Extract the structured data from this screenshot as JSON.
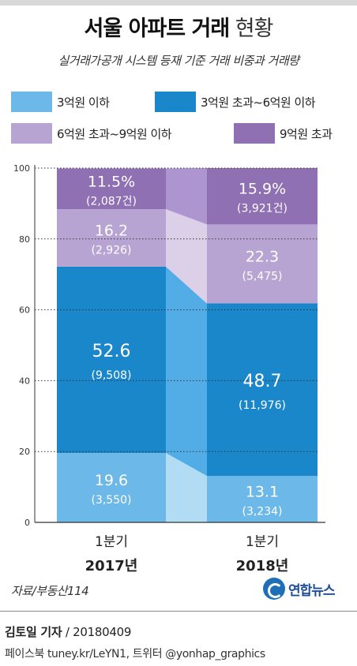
{
  "header": {
    "title_bold": "서울 아파트 거래",
    "title_light": "현황",
    "subtitle": "실거래가공개 시스템 등재 기준 거래 비중과 거래량"
  },
  "legend": [
    {
      "label": "3억원 이하",
      "color": "#6cb8e8"
    },
    {
      "label": "3억원 초과~6억원 이하",
      "color": "#1b87cb"
    },
    {
      "label": "6억원 초과~9억원 이하",
      "color": "#b8a4d2"
    },
    {
      "label": "9억원 초과",
      "color": "#8f70b2"
    }
  ],
  "chart_data": {
    "type": "bar",
    "stacked": true,
    "categories": [
      {
        "quarter": "1분기",
        "year": "2017년"
      },
      {
        "quarter": "1분기",
        "year": "2018년"
      }
    ],
    "series": [
      {
        "name": "3억원 이하",
        "color": "#6cb8e8",
        "values": [
          19.6,
          13.1
        ],
        "labels": [
          "19.6",
          "13.1"
        ],
        "counts": [
          "(3,550)",
          "(3,234)"
        ]
      },
      {
        "name": "3억원 초과~6억원 이하",
        "color": "#1b87cb",
        "values": [
          52.6,
          48.7
        ],
        "labels": [
          "52.6",
          "48.7"
        ],
        "counts": [
          "(9,508)",
          "(11,976)"
        ]
      },
      {
        "name": "6억원 초과~9억원 이하",
        "color": "#b8a4d2",
        "values": [
          16.2,
          22.3
        ],
        "labels": [
          "16.2",
          "22.3"
        ],
        "counts": [
          "(2,926)",
          "(5,475)"
        ]
      },
      {
        "name": "9억원 초과",
        "color": "#8f70b2",
        "values": [
          11.5,
          15.9
        ],
        "labels": [
          "11.5%",
          "15.9%"
        ],
        "counts": [
          "(2,087건)",
          "(3,921건)"
        ]
      }
    ],
    "connector_colors": [
      "#b2dcf4",
      "#52ade6",
      "#dccfe8",
      "#ad95cf"
    ],
    "ylim": [
      0,
      100
    ],
    "yticks": [
      0,
      20,
      40,
      60,
      80,
      100
    ],
    "grid": true
  },
  "footer": {
    "source": "자료/부동산114",
    "logo_text": "연합뉴스",
    "credit_name": "김토일 기자",
    "credit_date": " / 20180409",
    "sns": "페이스북 tuney.kr/LeYN1, 트위터 @yonhap_graphics"
  }
}
